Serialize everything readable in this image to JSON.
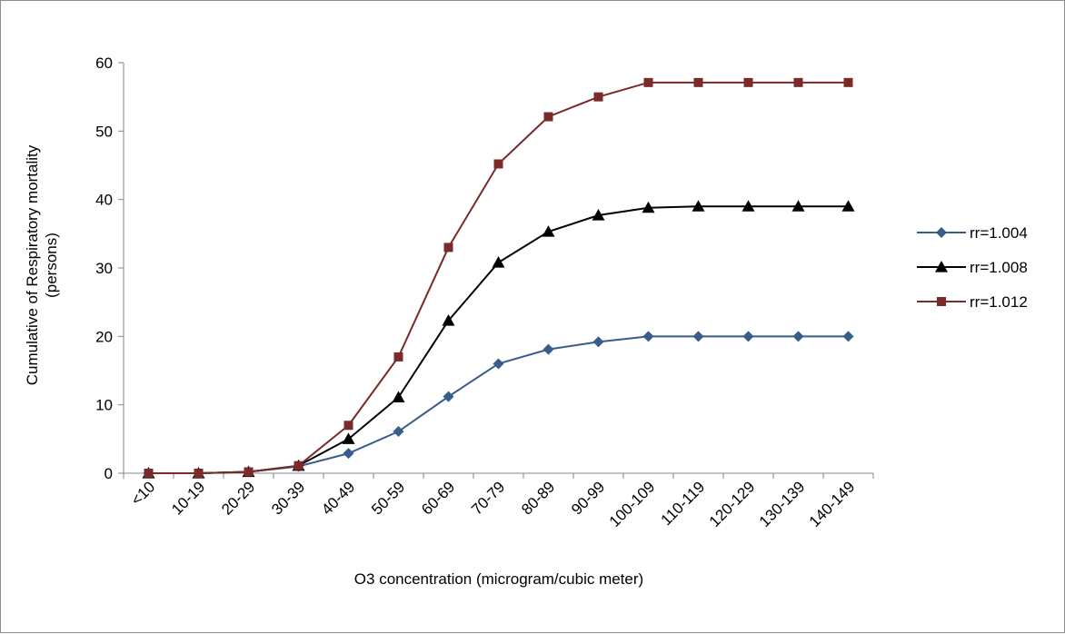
{
  "chart_data": {
    "type": "line",
    "categories": [
      "<10",
      "10-19",
      "20-29",
      "30-39",
      "40-49",
      "50-59",
      "60-69",
      "70-79",
      "80-89",
      "90-99",
      "100-109",
      "110-119",
      "120-129",
      "130-139",
      "140-149"
    ],
    "series": [
      {
        "name": "rr=1.004",
        "color": "#385D8A",
        "marker": "diamond",
        "values": [
          0,
          0,
          0.2,
          1,
          2.9,
          6.1,
          11.2,
          16,
          18.1,
          19.2,
          20,
          20,
          20,
          20,
          20
        ]
      },
      {
        "name": "rr=1.008",
        "color": "#000000",
        "marker": "triangle",
        "values": [
          0,
          0,
          0.2,
          1.1,
          5,
          11.1,
          22.3,
          30.8,
          35.3,
          37.7,
          38.8,
          39,
          39,
          39,
          39
        ]
      },
      {
        "name": "rr=1.012",
        "color": "#7B2A2A",
        "marker": "square",
        "values": [
          0,
          0,
          0.2,
          1.1,
          7,
          17,
          33,
          45.2,
          52.1,
          55,
          57.1,
          57.1,
          57.1,
          57.1,
          57.1
        ]
      }
    ],
    "xlabel": "O3 concentration (microgram/cubic meter)",
    "ylabel_lines": [
      "Cumulative of Respiratory mortality",
      "(persons)"
    ],
    "ylim": [
      0,
      60
    ],
    "yticks": [
      0,
      10,
      20,
      30,
      40,
      50,
      60
    ],
    "grid": false,
    "legend_position": "right"
  }
}
